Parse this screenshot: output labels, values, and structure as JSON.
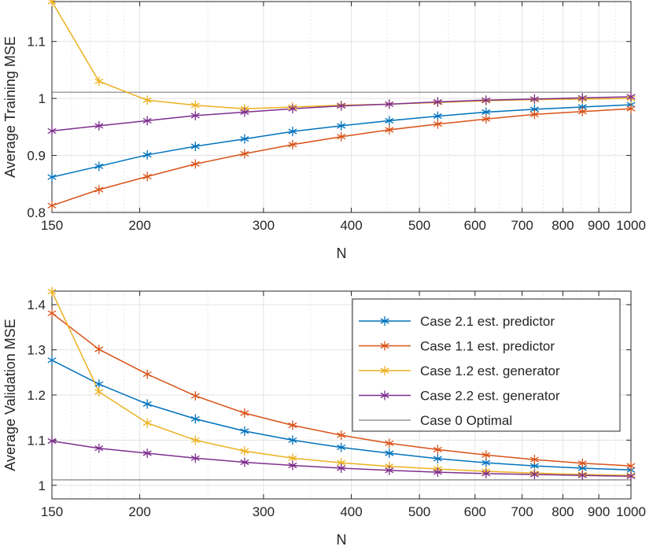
{
  "chart_data": [
    {
      "type": "line",
      "xscale": "log",
      "xlabel": "N",
      "ylabel": "Average Training MSE",
      "xlim": [
        150,
        1000
      ],
      "ylim": [
        0.8,
        1.17
      ],
      "grid": true,
      "xticks": [
        150,
        200,
        300,
        400,
        500,
        600,
        700,
        800,
        900,
        1000
      ],
      "xtick_labels": [
        "150",
        "200",
        "300",
        "400",
        "500",
        "600",
        "700",
        "800",
        "900",
        "1000"
      ],
      "yticks": [
        0.8,
        0.9,
        1.0,
        1.1
      ],
      "ytick_labels": [
        "0.8",
        "0.9",
        "1",
        "1.1"
      ],
      "x": [
        150,
        175,
        205,
        240,
        282,
        330,
        387,
        453,
        531,
        622,
        729,
        853,
        1000
      ],
      "series": [
        {
          "name": "Case 2.1 est. predictor",
          "color": "#0072BD",
          "marker": true,
          "values": [
            0.862,
            0.881,
            0.901,
            0.916,
            0.929,
            0.942,
            0.952,
            0.961,
            0.969,
            0.976,
            0.981,
            0.985,
            0.989
          ]
        },
        {
          "name": "Case 1.1 est. predictor",
          "color": "#D95319",
          "marker": true,
          "values": [
            0.812,
            0.84,
            0.863,
            0.885,
            0.903,
            0.919,
            0.933,
            0.945,
            0.955,
            0.964,
            0.972,
            0.977,
            0.982
          ]
        },
        {
          "name": "Case 1.2 est. generator",
          "color": "#EDB120",
          "marker": true,
          "values": [
            1.17,
            1.03,
            0.997,
            0.988,
            0.982,
            0.985,
            0.988,
            0.99,
            0.993,
            0.996,
            0.998,
            0.999,
            1.0
          ]
        },
        {
          "name": "Case 2.2 est. generator",
          "color": "#7E2F8E",
          "marker": true,
          "values": [
            0.943,
            0.952,
            0.961,
            0.97,
            0.976,
            0.982,
            0.987,
            0.99,
            0.994,
            0.997,
            0.999,
            1.001,
            1.003
          ]
        },
        {
          "name": "Case 0 Optimal",
          "color": "#808080",
          "marker": false,
          "values": [
            1.011,
            1.011,
            1.011,
            1.011,
            1.011,
            1.011,
            1.011,
            1.011,
            1.011,
            1.011,
            1.011,
            1.011,
            1.011
          ]
        }
      ]
    },
    {
      "type": "line",
      "xscale": "log",
      "xlabel": "N",
      "ylabel": "Average Validation MSE",
      "xlim": [
        150,
        1000
      ],
      "ylim": [
        0.97,
        1.43
      ],
      "grid": true,
      "xticks": [
        150,
        200,
        300,
        400,
        500,
        600,
        700,
        800,
        900,
        1000
      ],
      "xtick_labels": [
        "150",
        "200",
        "300",
        "400",
        "500",
        "600",
        "700",
        "800",
        "900",
        "1000"
      ],
      "yticks": [
        1.0,
        1.1,
        1.2,
        1.3,
        1.4
      ],
      "ytick_labels": [
        "1",
        "1.1",
        "1.2",
        "1.3",
        "1.4"
      ],
      "legend": {
        "position": "top-right",
        "entries": [
          "Case 2.1 est. predictor",
          "Case 1.1 est. predictor",
          "Case 1.2 est. generator",
          "Case 2.2 est. generator",
          "Case 0 Optimal"
        ]
      },
      "x": [
        150,
        175,
        205,
        240,
        282,
        330,
        387,
        453,
        531,
        622,
        729,
        853,
        1000
      ],
      "series": [
        {
          "name": "Case 2.1 est. predictor",
          "color": "#0072BD",
          "marker": true,
          "values": [
            1.277,
            1.224,
            1.18,
            1.147,
            1.12,
            1.1,
            1.084,
            1.071,
            1.059,
            1.05,
            1.043,
            1.038,
            1.034
          ]
        },
        {
          "name": "Case 1.1 est. predictor",
          "color": "#D95319",
          "marker": true,
          "values": [
            1.381,
            1.301,
            1.246,
            1.198,
            1.16,
            1.133,
            1.111,
            1.093,
            1.079,
            1.067,
            1.057,
            1.049,
            1.043
          ]
        },
        {
          "name": "Case 1.2 est. generator",
          "color": "#EDB120",
          "marker": true,
          "values": [
            1.429,
            1.207,
            1.138,
            1.1,
            1.076,
            1.06,
            1.05,
            1.042,
            1.036,
            1.031,
            1.027,
            1.024,
            1.022
          ]
        },
        {
          "name": "Case 2.2 est. generator",
          "color": "#7E2F8E",
          "marker": true,
          "values": [
            1.098,
            1.082,
            1.071,
            1.06,
            1.051,
            1.044,
            1.038,
            1.033,
            1.029,
            1.026,
            1.024,
            1.022,
            1.02
          ]
        },
        {
          "name": "Case 0 Optimal",
          "color": "#808080",
          "marker": false,
          "values": [
            1.012,
            1.012,
            1.012,
            1.012,
            1.012,
            1.012,
            1.012,
            1.012,
            1.012,
            1.012,
            1.012,
            1.012,
            1.012
          ]
        }
      ]
    }
  ]
}
